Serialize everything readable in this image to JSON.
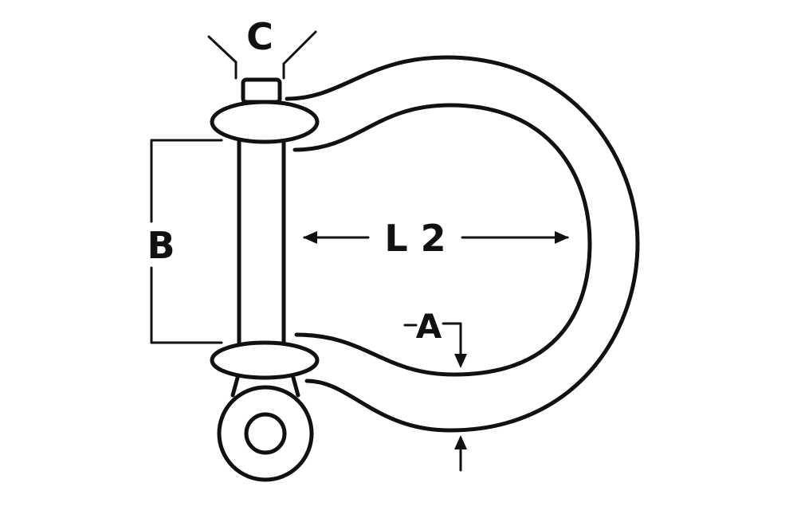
{
  "labels": {
    "c": "C",
    "b": "B",
    "l2": "L 2",
    "a": "A"
  },
  "colors": {
    "ink": "#111111",
    "background": "#ffffff"
  }
}
